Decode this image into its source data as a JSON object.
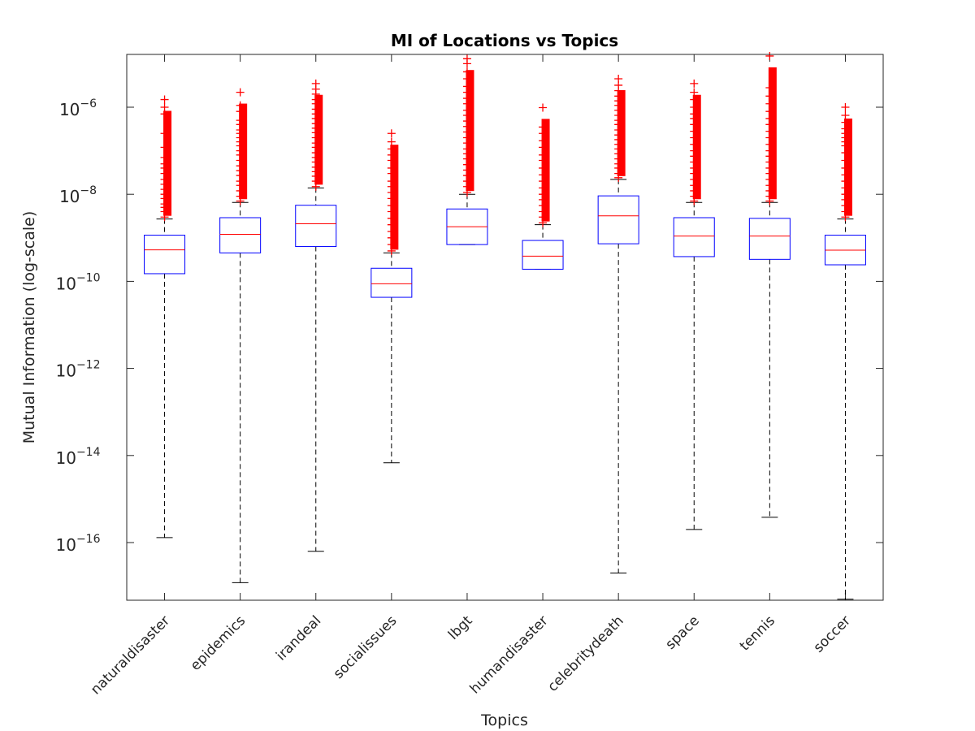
{
  "chart_data": {
    "type": "boxplot",
    "title": "MI of Locations vs Topics",
    "xlabel": "Topics",
    "ylabel": "Mutual Information (log-scale)",
    "yscale": "log",
    "ylim": [
      4e-18,
      1.5e-05
    ],
    "yticks": [
      {
        "value": 1e-16,
        "base": "10",
        "exp": "−16"
      },
      {
        "value": 1e-14,
        "base": "10",
        "exp": "−14"
      },
      {
        "value": 1e-12,
        "base": "10",
        "exp": "−12"
      },
      {
        "value": 1e-10,
        "base": "10",
        "exp": "−10"
      },
      {
        "value": 1e-08,
        "base": "10",
        "exp": "−8"
      },
      {
        "value": 1e-06,
        "base": "10",
        "exp": "−6"
      }
    ],
    "grid": false,
    "colors": {
      "box": "#0000ff",
      "median": "#ff0000",
      "outlier": "#ff0000",
      "whisker": "#000000"
    },
    "categories": [
      "naturaldisaster",
      "epidemics",
      "irandeal",
      "socialissues",
      "lbgt",
      "humandisaster",
      "celebritydeath",
      "space",
      "tennis",
      "soccer"
    ],
    "boxes": [
      {
        "whisker_low": 1.3e-16,
        "q1": 1.5e-10,
        "median": 5.3e-10,
        "q3": 1.15e-09,
        "whisker_high": 2.7e-09,
        "outlier_max": 1.5e-06
      },
      {
        "whisker_low": 1.2e-17,
        "q1": 4.5e-10,
        "median": 1.2e-09,
        "q3": 2.9e-09,
        "whisker_high": 6.5e-09,
        "outlier_max": 2.2e-06
      },
      {
        "whisker_low": 6.3e-17,
        "q1": 6.3e-10,
        "median": 2.1e-09,
        "q3": 5.6e-09,
        "whisker_high": 1.4e-08,
        "outlier_max": 3.5e-06
      },
      {
        "whisker_low": 6.8e-15,
        "q1": 4.3e-11,
        "median": 8.8e-11,
        "q3": 2e-10,
        "whisker_high": 4.5e-10,
        "outlier_max": 2.5e-07
      },
      {
        "whisker_low": 7e-10,
        "q1": 7e-10,
        "median": 1.8e-09,
        "q3": 4.6e-09,
        "whisker_high": 1e-08,
        "outlier_max": 1.3e-05
      },
      {
        "whisker_low": 1.9e-10,
        "q1": 1.9e-10,
        "median": 3.8e-10,
        "q3": 8.7e-10,
        "whisker_high": 2e-09,
        "outlier_max": 9.8e-07
      },
      {
        "whisker_low": 2e-17,
        "q1": 7.3e-10,
        "median": 3.2e-09,
        "q3": 9.2e-09,
        "whisker_high": 2.2e-08,
        "outlier_max": 4.5e-06
      },
      {
        "whisker_low": 2e-16,
        "q1": 3.7e-10,
        "median": 1.1e-09,
        "q3": 2.9e-09,
        "whisker_high": 6.5e-09,
        "outlier_max": 3.5e-06
      },
      {
        "whisker_low": 3.8e-16,
        "q1": 3.2e-10,
        "median": 1.1e-09,
        "q3": 2.8e-09,
        "whisker_high": 6.5e-09,
        "outlier_max": 1.5e-05
      },
      {
        "whisker_low": 5e-18,
        "q1": 2.4e-10,
        "median": 5.2e-10,
        "q3": 1.15e-09,
        "whisker_high": 2.7e-09,
        "outlier_max": 1e-06
      }
    ],
    "outlier_values": [
      [
        3e-09,
        4e-09,
        5e-09,
        6e-09,
        8e-09,
        1e-08,
        1.3e-08,
        1.7e-08,
        2.2e-08,
        3e-08,
        4e-08,
        5e-08,
        7e-08,
        1.2e-07,
        2.5e-07,
        7e-07,
        1e-06,
        1.5e-06
      ],
      [
        7e-09,
        9e-09,
        1.2e-08,
        1.6e-08,
        2e-08,
        2.7e-08,
        3.5e-08,
        4.5e-08,
        6e-08,
        8e-08,
        1e-07,
        1.3e-07,
        1.6e-07,
        2e-07,
        2.5e-07,
        3e-07,
        4e-07,
        5e-07,
        8e-07,
        1.1e-06,
        2.2e-06
      ],
      [
        1.5e-08,
        2e-08,
        2.6e-08,
        3.3e-08,
        4.2e-08,
        5.5e-08,
        7e-08,
        9e-08,
        1.2e-07,
        1.5e-07,
        2e-07,
        2.6e-07,
        3.3e-07,
        4.2e-07,
        5.5e-07,
        7e-07,
        9e-07,
        1.2e-06,
        1.5e-06,
        2e-06,
        2.6e-06,
        3.5e-06
      ],
      [
        5e-10,
        7e-10,
        1e-09,
        1.4e-09,
        2e-09,
        2.8e-09,
        4e-09,
        5.5e-09,
        8e-09,
        1.1e-08,
        1.5e-08,
        2e-08,
        3e-08,
        4e-08,
        6e-08,
        8e-08,
        1.1e-07,
        1.6e-07,
        2.5e-07
      ],
      [
        1.1e-08,
        1.5e-08,
        2e-08,
        2.7e-08,
        3.6e-08,
        4.8e-08,
        6.5e-08,
        8.5e-08,
        1.1e-07,
        1.5e-07,
        2e-07,
        2.7e-07,
        3.6e-07,
        4.8e-07,
        6.5e-07,
        8.5e-07,
        1.2e-06,
        1.6e-06,
        2.2e-06,
        3e-06,
        4.5e-06,
        6.5e-06,
        1e-05,
        1.3e-05
      ],
      [
        2.2e-09,
        3e-09,
        4e-09,
        5.5e-09,
        7.5e-09,
        1e-08,
        1.4e-08,
        2e-08,
        2.8e-08,
        4e-08,
        6e-08,
        8e-08,
        1.2e-07,
        1.7e-07,
        2.5e-07,
        3.5e-07,
        9.8e-07
      ],
      [
        2.4e-08,
        3e-08,
        4e-08,
        5e-08,
        6.5e-08,
        8.5e-08,
        1.1e-07,
        1.4e-07,
        1.8e-07,
        2.3e-07,
        3e-07,
        4e-07,
        5e-07,
        6.5e-07,
        8.5e-07,
        1.1e-06,
        1.4e-06,
        1.8e-06,
        2.4e-06,
        3.2e-06,
        4.5e-06
      ],
      [
        7e-09,
        9e-09,
        1.2e-08,
        1.6e-08,
        2.2e-08,
        3e-08,
        4e-08,
        5.5e-08,
        7.5e-08,
        1e-07,
        1.4e-07,
        2e-07,
        2.8e-07,
        4e-07,
        5.5e-07,
        7e-07,
        1e-06,
        1.5e-06,
        2.2e-06,
        3.5e-06
      ],
      [
        7e-09,
        9e-09,
        1.2e-08,
        1.6e-08,
        2.2e-08,
        3e-08,
        4e-08,
        5.5e-08,
        7.5e-08,
        1e-07,
        1.4e-07,
        2e-07,
        2.8e-07,
        4e-07,
        5.5e-07,
        8e-07,
        1.2e-06,
        1.8e-06,
        2.8e-06,
        1.5e-05
      ],
      [
        3e-09,
        4e-09,
        5.5e-09,
        7.5e-09,
        1e-08,
        1.4e-08,
        2e-08,
        2.8e-08,
        4e-08,
        6e-08,
        9e-08,
        1.3e-07,
        1.6e-07,
        2e-07,
        2.5e-07,
        3.2e-07,
        4.5e-07,
        6.5e-07,
        1e-06
      ]
    ]
  }
}
